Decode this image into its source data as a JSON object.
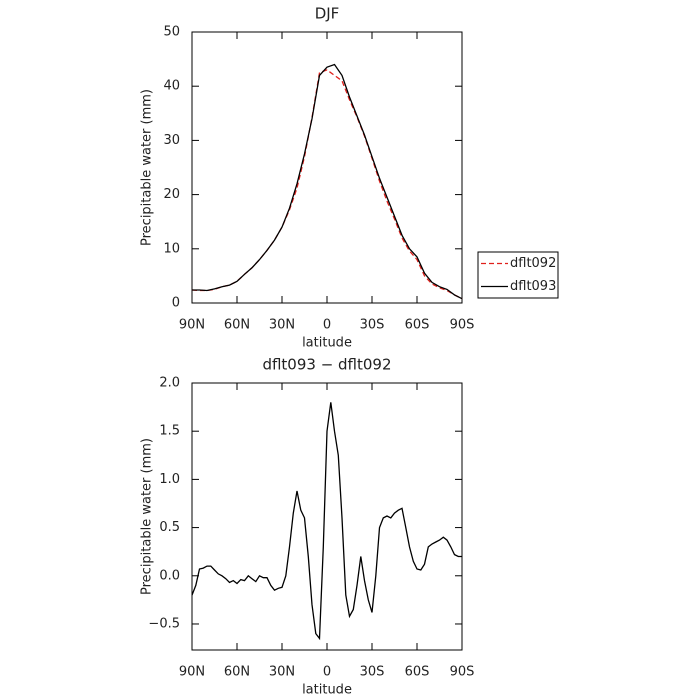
{
  "chart_data": [
    {
      "type": "line",
      "title": "DJF",
      "xlabel": "latitude",
      "ylabel": "Precipitable water (mm)",
      "x": [
        90,
        85,
        80,
        75,
        70,
        65,
        60,
        55,
        50,
        45,
        40,
        35,
        30,
        25,
        20,
        15,
        10,
        5,
        0,
        -5,
        -10,
        -15,
        -20,
        -25,
        -30,
        -35,
        -40,
        -45,
        -50,
        -55,
        -60,
        -65,
        -70,
        -75,
        -80,
        -85,
        -90
      ],
      "series": [
        {
          "name": "dflt092",
          "color": "#e0201b",
          "linestyle": "dashed",
          "values": [
            2.4,
            2.3,
            2.3,
            2.5,
            3.0,
            3.3,
            4.0,
            5.3,
            6.5,
            8.0,
            9.7,
            11.6,
            14.0,
            17.2,
            21.2,
            27.0,
            34.2,
            42.5,
            43.0,
            42.0,
            41.0,
            37.5,
            34.3,
            30.8,
            26.7,
            22.5,
            18.8,
            15.5,
            12.0,
            9.6,
            8.0,
            5.0,
            3.5,
            2.8,
            2.3,
            1.5,
            0.8
          ]
        },
        {
          "name": "dflt093",
          "color": "#000000",
          "linestyle": "solid",
          "values": [
            2.4,
            2.4,
            2.3,
            2.6,
            3.0,
            3.3,
            4.0,
            5.3,
            6.5,
            8.0,
            9.7,
            11.6,
            14.0,
            17.5,
            22.0,
            27.5,
            34.0,
            42.0,
            43.5,
            44.0,
            42.0,
            38.0,
            34.5,
            31.0,
            27.0,
            23.0,
            19.5,
            16.0,
            12.5,
            10.0,
            8.5,
            5.5,
            3.8,
            3.0,
            2.5,
            1.5,
            0.8
          ]
        }
      ],
      "xlim": [
        90,
        -90
      ],
      "xticks": [
        {
          "value": 90,
          "label": "90N"
        },
        {
          "value": 60,
          "label": "60N"
        },
        {
          "value": 30,
          "label": "30N"
        },
        0,
        {
          "value": -30,
          "label": "30S"
        },
        {
          "value": -60,
          "label": "60S"
        },
        {
          "value": -90,
          "label": "90S"
        }
      ],
      "ylim": [
        0,
        50
      ],
      "yticks": [
        0,
        10,
        20,
        30,
        40,
        50
      ],
      "legend": "right"
    },
    {
      "type": "line",
      "title": "dflt093 − dflt092",
      "xlabel": "latitude",
      "ylabel": "Precipitable water (mm)",
      "x": [
        90,
        87.5,
        85,
        82.5,
        80,
        77.5,
        75,
        72.5,
        70,
        67.5,
        65,
        62.5,
        60,
        57.5,
        55,
        52.5,
        50,
        47.5,
        45,
        42.5,
        40,
        37.5,
        35,
        32.5,
        30,
        27.5,
        25,
        22.5,
        20,
        17.5,
        15,
        12.5,
        10,
        7.5,
        5,
        2.5,
        0,
        -2.5,
        -5,
        -7.5,
        -10,
        -12.5,
        -15,
        -17.5,
        -20,
        -22.5,
        -25,
        -27.5,
        -30,
        -32.5,
        -35,
        -37.5,
        -40,
        -42.5,
        -45,
        -47.5,
        -50,
        -52.5,
        -55,
        -57.5,
        -60,
        -62.5,
        -65,
        -67.5,
        -70,
        -72.5,
        -75,
        -77.5,
        -80,
        -82.5,
        -85,
        -87.5,
        -90
      ],
      "series": [
        {
          "name": "dflt093 − dflt092",
          "color": "#000000",
          "linestyle": "solid",
          "values": [
            -0.2,
            -0.1,
            0.07,
            0.08,
            0.1,
            0.1,
            0.06,
            0.02,
            0.0,
            -0.03,
            -0.07,
            -0.05,
            -0.08,
            -0.04,
            -0.05,
            0.0,
            -0.03,
            -0.06,
            0.0,
            -0.02,
            -0.02,
            -0.1,
            -0.15,
            -0.13,
            -0.12,
            0.0,
            0.3,
            0.65,
            0.88,
            0.68,
            0.6,
            0.2,
            -0.3,
            -0.6,
            -0.65,
            0.3,
            1.5,
            1.8,
            1.5,
            1.25,
            0.6,
            -0.2,
            -0.42,
            -0.35,
            -0.1,
            0.2,
            -0.05,
            -0.25,
            -0.38,
            0.0,
            0.5,
            0.6,
            0.62,
            0.6,
            0.65,
            0.68,
            0.7,
            0.5,
            0.3,
            0.15,
            0.07,
            0.06,
            0.12,
            0.3,
            0.33,
            0.35,
            0.37,
            0.4,
            0.37,
            0.3,
            0.22,
            0.2,
            0.2
          ]
        }
      ],
      "xlim": [
        90,
        -90
      ],
      "xticks": [
        {
          "value": 90,
          "label": "90N"
        },
        {
          "value": 60,
          "label": "60N"
        },
        {
          "value": 30,
          "label": "30N"
        },
        0,
        {
          "value": -30,
          "label": "30S"
        },
        {
          "value": -60,
          "label": "60S"
        },
        {
          "value": -90,
          "label": "90S"
        }
      ],
      "ylim": [
        -0.77,
        2.0
      ],
      "yticks": [
        {
          "value": -0.5,
          "label": "−0.5"
        },
        {
          "value": 0,
          "label": "0.0"
        },
        0.5,
        {
          "value": 1,
          "label": "1.0"
        },
        1.5,
        {
          "value": 2,
          "label": "2.0"
        }
      ]
    }
  ]
}
